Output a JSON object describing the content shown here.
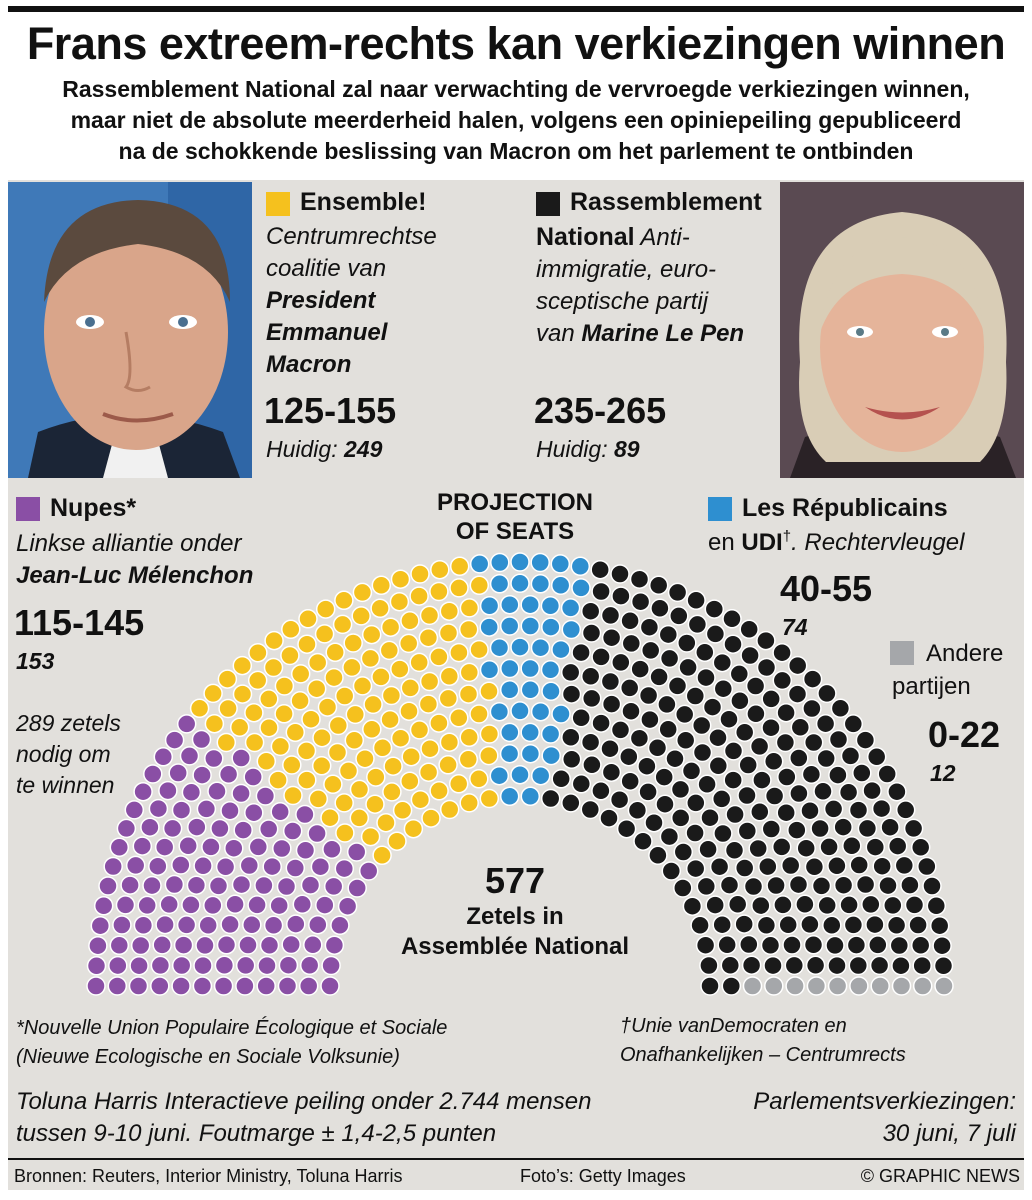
{
  "title": "Frans extreem-rechts kan verkiezingen winnen",
  "subtitle_lines": [
    "Rassemblement National zal naar verwachting de vervroegde verkiezingen winnen,",
    "maar niet de absolute meerderheid halen, volgens een opiniepeiling gepubliceerd",
    "na de schokkende beslissing van Macron om het parlement te ontbinden"
  ],
  "colors": {
    "ensemble": "#f5c11e",
    "rn": "#1a1a1a",
    "nupes": "#8a4fa5",
    "lr": "#2e8fd0",
    "other": "#a5a7aa"
  },
  "ensemble": {
    "name": "Ensemble!",
    "desc_lines": [
      "Centrumrechtse",
      "coalitie van"
    ],
    "bold_lines": [
      "President",
      "Emmanuel",
      "Macron"
    ],
    "range": "125-155",
    "current_label": "Huidig:",
    "current": "249"
  },
  "rn": {
    "name_1": "Rassemblement",
    "name_2": "National",
    "desc_1": "Anti-",
    "desc_lines": [
      "immigratie, euro-",
      "sceptische partij"
    ],
    "desc_last": "van",
    "leader": "Marine Le Pen",
    "range": "235-265",
    "current_label": "Huidig:",
    "current": "89"
  },
  "nupes": {
    "name": "Nupes*",
    "desc": "Linkse alliantie onder",
    "leader": "Jean-Luc Mélenchon",
    "range": "115-145",
    "current": "153"
  },
  "lr": {
    "name": "Les Républicains",
    "en": "en",
    "udi": "UDI",
    "dagger": "†",
    "desc": ". Rechtervleugel",
    "range": "40-55",
    "current": "74"
  },
  "other": {
    "name_1": "Andere",
    "name_2": "partijen",
    "range": "0-22",
    "current": "12"
  },
  "projection_lines": [
    "PROJECTION",
    "OF SEATS"
  ],
  "majority_lines": [
    "289 zetels",
    "nodig om",
    "te winnen"
  ],
  "total": {
    "number": "577",
    "line_1": "Zetels in",
    "line_2": "Assemblée National"
  },
  "footnote_left": [
    "*Nouvelle Union Populaire Écologique et Sociale",
    "(Nieuwe Ecologische en Sociale Volksunie)"
  ],
  "footnote_right": [
    "†Unie vanDemocraten en",
    "Onafhankelijken – Centrumrects"
  ],
  "poll_note": [
    "Toluna Harris Interactieve peiling onder 2.744 mensen",
    "tussen 9-10 juni. Foutmarge ± 1,4-2,5 punten"
  ],
  "election_note": [
    "Parlementsverkiezingen:",
    "30 juni, 7 juli"
  ],
  "sources": "Bronnen: Reuters, Interior Ministry, Toluna Harris",
  "photos_credit": "Foto’s: Getty Images",
  "credit": "© GRAPHIC NEWS",
  "chart_data": {
    "type": "parliament",
    "title": "PROJECTION OF SEATS",
    "total_seats": 577,
    "majority": 289,
    "series": [
      {
        "name": "Nupes*",
        "range": [
          115,
          145
        ],
        "current": 153,
        "seats_drawn": 130
      },
      {
        "name": "Ensemble!",
        "range": [
          125,
          155
        ],
        "current": 249,
        "seats_drawn": 140
      },
      {
        "name": "Les Républicains en UDI",
        "range": [
          40,
          55
        ],
        "current": 74,
        "seats_drawn": 47
      },
      {
        "name": "Rassemblement National",
        "range": [
          235,
          265
        ],
        "current": 89,
        "seats_drawn": 250
      },
      {
        "name": "Andere partijen",
        "range": [
          0,
          22
        ],
        "current": 12,
        "seats_drawn": 10
      }
    ]
  }
}
